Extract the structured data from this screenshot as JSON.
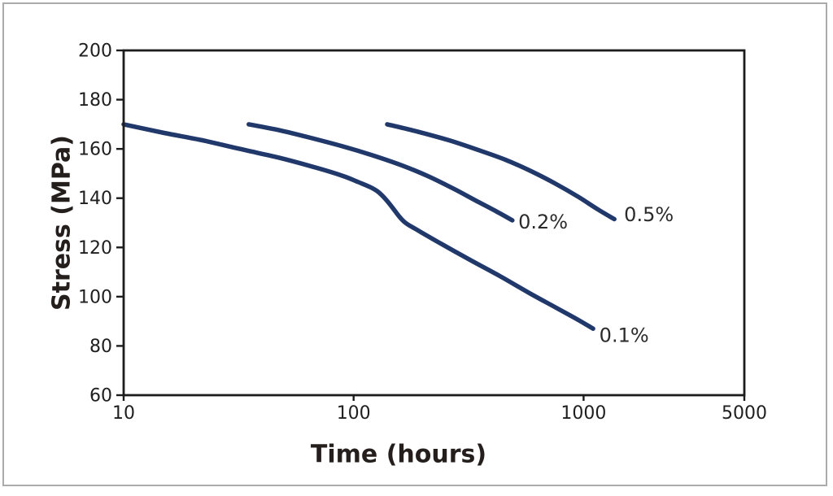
{
  "figure": {
    "background": "#ffffff",
    "border_color": "#ababab"
  },
  "chart_data": {
    "type": "line",
    "title": "",
    "xlabel": "Time (hours)",
    "ylabel": "Stress (MPa)",
    "x_scale": "log",
    "y_scale": "linear",
    "xlim": [
      10,
      5000
    ],
    "ylim": [
      60,
      200
    ],
    "x_ticks": [
      10,
      100,
      1000,
      5000
    ],
    "y_ticks": [
      200,
      180,
      160,
      140,
      120,
      100,
      80,
      60
    ],
    "grid": false,
    "legend_position": "inline labels at right end of each curve",
    "colors": {
      "line": "#20386a",
      "axis": "#1c1c1c",
      "tick_label": "#1f1f1f",
      "axis_title": "#241f1d",
      "series_label": "#2b2b2b"
    },
    "series": [
      {
        "name": "0.1%",
        "label": "0.1%",
        "label_anchor": [
          1170,
          84
        ],
        "points": [
          [
            10,
            170
          ],
          [
            15,
            166.5
          ],
          [
            22,
            163.5
          ],
          [
            32,
            160
          ],
          [
            47,
            156.5
          ],
          [
            68,
            152.5
          ],
          [
            90,
            149
          ],
          [
            105,
            146.5
          ],
          [
            118,
            144.5
          ],
          [
            128,
            142.5
          ],
          [
            138,
            139.5
          ],
          [
            148,
            136
          ],
          [
            158,
            132.5
          ],
          [
            168,
            130
          ],
          [
            182,
            128
          ],
          [
            240,
            121.5
          ],
          [
            320,
            115
          ],
          [
            430,
            108.5
          ],
          [
            580,
            101.5
          ],
          [
            760,
            95.5
          ],
          [
            950,
            90.5
          ],
          [
            1100,
            87
          ]
        ]
      },
      {
        "name": "0.2%",
        "label": "0.2%",
        "label_anchor": [
          520,
          130
        ],
        "points": [
          [
            35,
            170
          ],
          [
            48,
            167.5
          ],
          [
            65,
            164.5
          ],
          [
            90,
            161
          ],
          [
            120,
            157.5
          ],
          [
            160,
            153.5
          ],
          [
            210,
            149
          ],
          [
            270,
            144
          ],
          [
            340,
            139
          ],
          [
            420,
            134.5
          ],
          [
            490,
            131
          ]
        ]
      },
      {
        "name": "0.5%",
        "label": "0.5%",
        "label_anchor": [
          1500,
          133
        ],
        "points": [
          [
            140,
            170
          ],
          [
            190,
            167
          ],
          [
            260,
            163.5
          ],
          [
            350,
            159.5
          ],
          [
            460,
            155.5
          ],
          [
            590,
            151
          ],
          [
            750,
            146
          ],
          [
            950,
            140.5
          ],
          [
            1150,
            135.5
          ],
          [
            1360,
            131.5
          ]
        ]
      }
    ]
  }
}
